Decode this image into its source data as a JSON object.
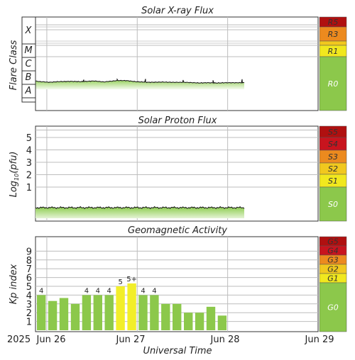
{
  "colors": {
    "fill_green": "#8ccc4d",
    "bar_green": "#8cc84b",
    "bar_yellow": "#f2ee2a",
    "grid": "#bdbdbd",
    "scale_red": "#c8141e",
    "scale_darkred": "#b01010",
    "scale_orange": "#ec8a1e",
    "scale_yellow": "#f1e81e",
    "scale_green": "#8cc84b"
  },
  "x_axis": {
    "year": "2025",
    "ticks": [
      "Jun 26",
      "Jun 27",
      "Jun 28",
      "Jun 29"
    ],
    "label": "Universal Time"
  },
  "xray": {
    "title": "Solar X-ray Flux",
    "ylabel": "Flare Class",
    "classes": [
      "X",
      "M",
      "C",
      "B",
      "A"
    ],
    "scale": [
      {
        "label": "R5",
        "color": "#b01010"
      },
      {
        "label": "R3",
        "color": "#ec8a1e"
      },
      {
        "label": "R1",
        "color": "#f1e81e"
      },
      {
        "label": "R0",
        "color": "#8cc84b"
      }
    ]
  },
  "proton": {
    "title": "Solar Proton Flux",
    "ylabel_main": "Log",
    "ylabel_sub": "10",
    "ylabel_tail": "(pfu)",
    "ticks": [
      "5",
      "4",
      "3",
      "2",
      "1"
    ],
    "scale": [
      {
        "label": "S5",
        "color": "#b01010"
      },
      {
        "label": "S4",
        "color": "#c8141e"
      },
      {
        "label": "S3",
        "color": "#ec8a1e"
      },
      {
        "label": "S2",
        "color": "#f1c81e"
      },
      {
        "label": "S1",
        "color": "#f1e81e"
      },
      {
        "label": "S0",
        "color": "#8cc84b"
      }
    ]
  },
  "geomag": {
    "title": "Geomagnetic Activity",
    "ylabel": "Kp index",
    "ticks": [
      "9",
      "8",
      "7",
      "6",
      "5",
      "4",
      "3",
      "2",
      "1"
    ],
    "scale": [
      {
        "label": "G5",
        "color": "#b01010"
      },
      {
        "label": "G4",
        "color": "#c8141e"
      },
      {
        "label": "G3",
        "color": "#ec8a1e"
      },
      {
        "label": "G2",
        "color": "#f1c81e"
      },
      {
        "label": "G1",
        "color": "#f1e81e"
      },
      {
        "label": "G0",
        "color": "#8cc84b"
      }
    ]
  },
  "chart_data": [
    {
      "type": "area",
      "title": "Solar X-ray Flux",
      "ylabel": "Flare Class",
      "xlabel": "Universal Time",
      "y_categories": [
        "A",
        "B",
        "C",
        "M",
        "X"
      ],
      "y_scale": "log",
      "x_range": [
        "2025-06-25T21:00",
        "2025-06-29T00:00"
      ],
      "data_end": "2025-06-28T08:30",
      "series": [
        {
          "values_log10_w_m2": [
            [
              0.0,
              -6.75
            ],
            [
              0.1,
              -6.8
            ],
            [
              0.2,
              -6.82
            ],
            [
              0.3,
              -6.85
            ],
            [
              0.5,
              -6.8
            ],
            [
              0.8,
              -6.78
            ],
            [
              1.0,
              -6.8
            ],
            [
              1.3,
              -6.75
            ],
            [
              1.5,
              -6.82
            ],
            [
              1.8,
              -6.72
            ],
            [
              2.0,
              -6.72
            ],
            [
              2.2,
              -6.8
            ],
            [
              2.5,
              -6.85
            ],
            [
              2.8,
              -6.83
            ],
            [
              3.0,
              -6.85
            ],
            [
              3.3,
              -6.85
            ],
            [
              3.5,
              -6.88
            ],
            [
              3.6,
              -6.9
            ],
            [
              3.8,
              -6.88
            ],
            [
              4.0,
              -6.9
            ],
            [
              4.2,
              -6.88
            ],
            [
              4.6,
              -6.88
            ]
          ]
        }
      ]
    },
    {
      "type": "area",
      "title": "Solar Proton Flux",
      "ylabel": "Log10(pfu)",
      "xlabel": "Universal Time",
      "ylim": [
        -1,
        6
      ],
      "x_range": [
        "2025-06-25T21:00",
        "2025-06-29T00:00"
      ],
      "data_end": "2025-06-28T08:30",
      "series": [
        {
          "values": [
            [
              0.0,
              -0.65
            ],
            [
              0.5,
              -0.67
            ],
            [
              1.0,
              -0.66
            ],
            [
              1.5,
              -0.68
            ],
            [
              2.0,
              -0.65
            ],
            [
              2.5,
              -0.67
            ],
            [
              3.0,
              -0.66
            ],
            [
              3.5,
              -0.66
            ],
            [
              4.0,
              -0.65
            ],
            [
              4.6,
              -0.66
            ]
          ]
        }
      ]
    },
    {
      "type": "bar",
      "title": "Geomagnetic Activity",
      "ylabel": "Kp index",
      "xlabel": "Universal Time",
      "ylim": [
        0,
        10
      ],
      "categories": [
        "2025-06-25T21:00",
        "2025-06-26T00:00",
        "2025-06-26T03:00",
        "2025-06-26T06:00",
        "2025-06-26T09:00",
        "2025-06-26T12:00",
        "2025-06-26T15:00",
        "2025-06-26T18:00",
        "2025-06-26T21:00",
        "2025-06-27T00:00",
        "2025-06-27T03:00",
        "2025-06-27T06:00",
        "2025-06-27T09:00",
        "2025-06-27T12:00",
        "2025-06-27T15:00",
        "2025-06-27T18:00",
        "2025-06-27T21:00",
        "2025-06-28T00:00"
      ],
      "values": [
        4.0,
        3.33,
        3.67,
        3.0,
        4.0,
        4.0,
        4.0,
        5.0,
        5.33,
        4.0,
        4.0,
        3.0,
        3.0,
        2.0,
        2.0,
        2.67,
        1.67,
        null
      ],
      "data_labels": [
        "4",
        "",
        "",
        "",
        "4",
        "4",
        "4",
        "5",
        "5+",
        "4",
        "4",
        "",
        "",
        "",
        "",
        "",
        "",
        ""
      ]
    }
  ]
}
